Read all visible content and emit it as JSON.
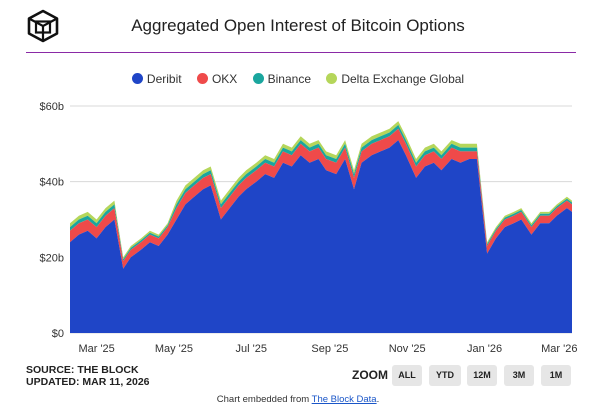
{
  "header": {
    "title": "Aggregated Open Interest of Bitcoin Options",
    "accent_color": "#8a2aa6"
  },
  "chart_data": {
    "type": "area",
    "title": "Aggregated Open Interest of Bitcoin Options",
    "stacked": true,
    "x_tick_labels": [
      "Mar '25",
      "May '25",
      "Jul '25",
      "Sep '25",
      "Nov '25",
      "Jan '26",
      "Mar '26"
    ],
    "y_tick_labels": [
      "$0",
      "$20b",
      "$40b",
      "$60b"
    ],
    "ylim": [
      0,
      60
    ],
    "y_unit": "$b",
    "legend_position": "top",
    "grid": true,
    "x": [
      "2025-02-08",
      "2025-02-15",
      "2025-02-22",
      "2025-03-01",
      "2025-03-08",
      "2025-03-15",
      "2025-03-22",
      "2025-03-28",
      "2025-04-05",
      "2025-04-12",
      "2025-04-19",
      "2025-04-26",
      "2025-05-03",
      "2025-05-10",
      "2025-05-17",
      "2025-05-24",
      "2025-05-30",
      "2025-06-07",
      "2025-06-14",
      "2025-06-21",
      "2025-06-27",
      "2025-07-05",
      "2025-07-12",
      "2025-07-19",
      "2025-07-26",
      "2025-08-02",
      "2025-08-09",
      "2025-08-16",
      "2025-08-23",
      "2025-08-29",
      "2025-09-06",
      "2025-09-13",
      "2025-09-20",
      "2025-09-26",
      "2025-10-04",
      "2025-10-11",
      "2025-10-18",
      "2025-10-25",
      "2025-10-31",
      "2025-11-08",
      "2025-11-15",
      "2025-11-22",
      "2025-11-28",
      "2025-12-06",
      "2025-12-13",
      "2025-12-20",
      "2025-12-26",
      "2026-01-03",
      "2026-01-10",
      "2026-01-17",
      "2026-01-24",
      "2026-01-30",
      "2026-02-07",
      "2026-02-14",
      "2026-02-21",
      "2026-02-27",
      "2026-03-07",
      "2026-03-11"
    ],
    "series": [
      {
        "name": "Deribit",
        "color": "#1f45c7",
        "values": [
          24,
          26,
          27,
          25,
          28,
          30,
          17,
          20,
          22,
          24,
          23,
          26,
          30,
          34,
          36,
          38,
          39,
          30,
          33,
          36,
          38,
          40,
          42,
          41,
          45,
          44,
          47,
          45,
          46,
          43,
          42,
          46,
          38,
          45,
          47,
          48,
          49,
          51,
          47,
          41,
          44,
          45,
          43,
          46,
          45,
          46,
          46,
          21,
          25,
          28,
          29,
          30,
          26,
          29,
          29,
          31,
          33,
          32
        ]
      },
      {
        "name": "OKX",
        "color": "#ef4a4a",
        "values": [
          3,
          3,
          3,
          3,
          3,
          3,
          2,
          2,
          2,
          2,
          2,
          2,
          3,
          3,
          3,
          3,
          3,
          3,
          3,
          3,
          3,
          3,
          3,
          3,
          3,
          3,
          3,
          3,
          3,
          3,
          3,
          3,
          3,
          3,
          3,
          3,
          3,
          3,
          3,
          3,
          3,
          3,
          3,
          3,
          3,
          2,
          2,
          2,
          2,
          2,
          2,
          2,
          2,
          2,
          2,
          2,
          2,
          2
        ]
      },
      {
        "name": "Binance",
        "color": "#1aa69e",
        "values": [
          1,
          1,
          1,
          1,
          1,
          1,
          0.5,
          0.5,
          0.5,
          0.5,
          0.5,
          0.5,
          1,
          1,
          1,
          1,
          1,
          1,
          1,
          1,
          1,
          1,
          1,
          1,
          1,
          1,
          1,
          1,
          1,
          1,
          1,
          1,
          1,
          1,
          1,
          1,
          1,
          1,
          1,
          1,
          1,
          1,
          1,
          1,
          1,
          1,
          1,
          0.5,
          0.5,
          0.5,
          0.5,
          0.5,
          0.5,
          0.5,
          0.5,
          0.5,
          0.5,
          0.5
        ]
      },
      {
        "name": "Delta Exchange Global",
        "color": "#b5d65a",
        "values": [
          1,
          1,
          1,
          1,
          1,
          1,
          0.5,
          0.5,
          0.5,
          0.5,
          0.5,
          0.5,
          1,
          1,
          1,
          1,
          1,
          1,
          1,
          1,
          1,
          1,
          1,
          1,
          1,
          1,
          1,
          1,
          1,
          1,
          1,
          1,
          1,
          1,
          1,
          1,
          1,
          1,
          1,
          1,
          1,
          1,
          1,
          1,
          1,
          1,
          1,
          0.5,
          0.5,
          0.5,
          0.5,
          0.5,
          0.5,
          0.5,
          0.5,
          0.5,
          0.5,
          0.5
        ]
      }
    ]
  },
  "source": {
    "line1": "SOURCE: THE BLOCK",
    "line2": "UPDATED: MAR 11, 2026"
  },
  "zoom": {
    "label": "ZOOM",
    "buttons": [
      "ALL",
      "YTD",
      "12M",
      "3M",
      "1M"
    ]
  },
  "footer": {
    "text": "Chart embedded from ",
    "link_text": "The Block Data",
    "suffix": "."
  }
}
